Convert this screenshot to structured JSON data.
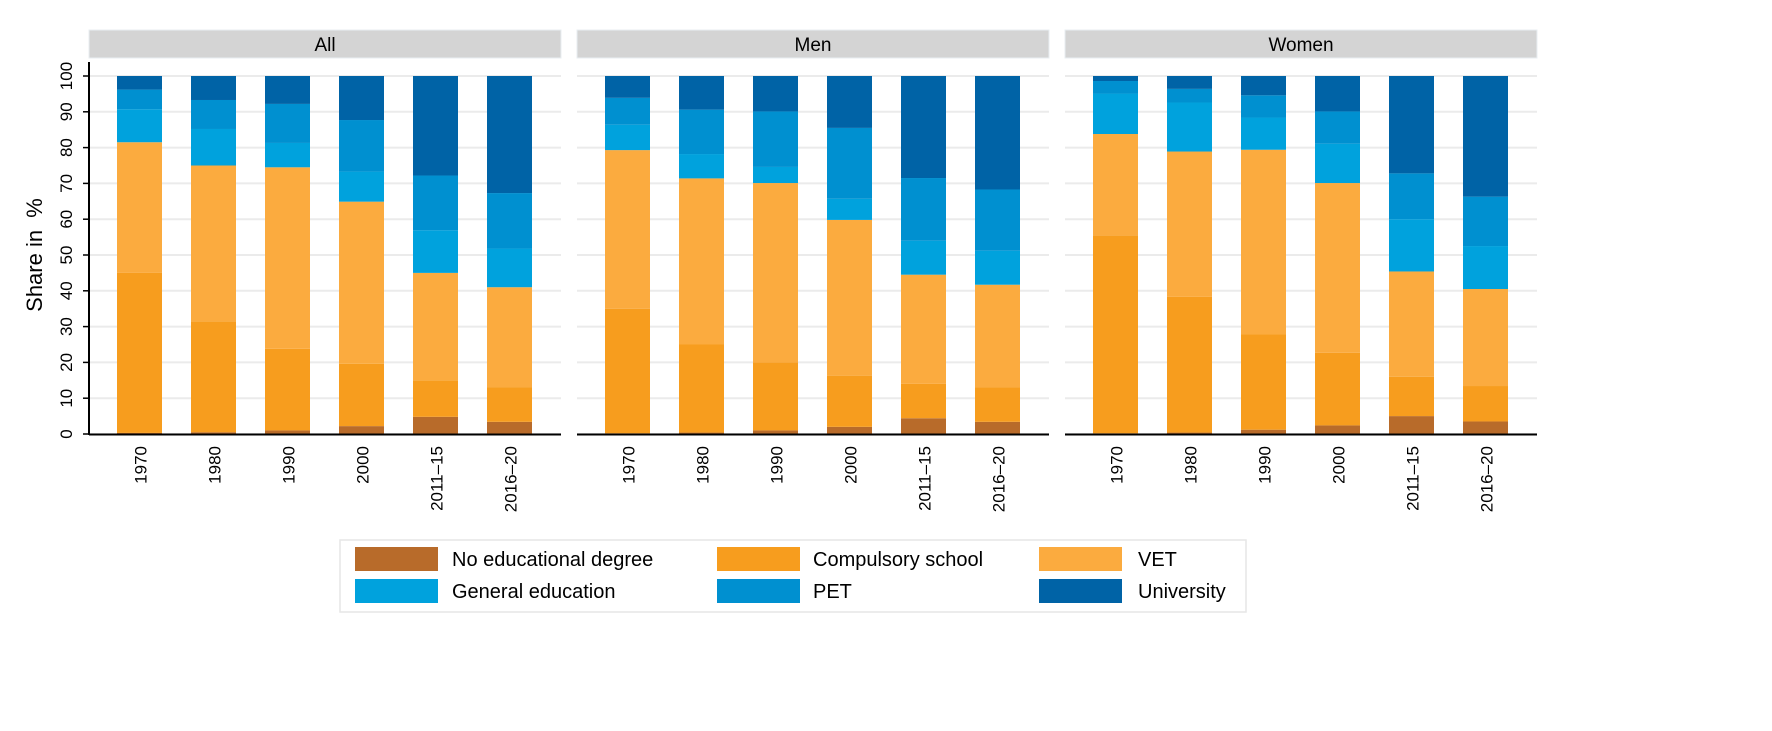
{
  "chart_data": {
    "type": "bar",
    "stacked": true,
    "ylabel": "Share in  %",
    "ylim": [
      0,
      100
    ],
    "yticks": [
      0,
      10,
      20,
      30,
      40,
      50,
      60,
      70,
      80,
      90,
      100
    ],
    "grid": true,
    "legend_position": "bottom",
    "categories": [
      "1970",
      "1980",
      "1990",
      "2000",
      "2011–15",
      "2016–20"
    ],
    "series_names": [
      "No educational degree",
      "Compulsory school",
      "VET",
      "General education",
      "PET",
      "University"
    ],
    "colors": [
      "#b86b2a",
      "#f79d1e",
      "#fbab3f",
      "#00a2dd",
      "#0090d0",
      "#0063a6"
    ],
    "panels": [
      {
        "title": "All",
        "series": [
          {
            "name": "No educational degree",
            "values": [
              0.3,
              0.5,
              1.0,
              2.2,
              4.8,
              3.4
            ]
          },
          {
            "name": "Compulsory school",
            "values": [
              44.7,
              31.0,
              22.8,
              17.4,
              10.2,
              9.7
            ]
          },
          {
            "name": "VET",
            "values": [
              36.5,
              43.5,
              50.7,
              45.3,
              30.0,
              27.9
            ]
          },
          {
            "name": "General education",
            "values": [
              9.2,
              10.2,
              6.8,
              8.4,
              11.9,
              10.8
            ]
          },
          {
            "name": "PET",
            "values": [
              5.5,
              8.1,
              10.9,
              14.4,
              15.3,
              15.5
            ]
          },
          {
            "name": "University",
            "values": [
              3.8,
              6.7,
              7.8,
              12.3,
              27.8,
              32.7
            ]
          }
        ]
      },
      {
        "title": "Men",
        "series": [
          {
            "name": "No educational degree",
            "values": [
              0.2,
              0.4,
              1.0,
              2.0,
              4.4,
              3.4
            ]
          },
          {
            "name": "Compulsory school",
            "values": [
              34.8,
              24.6,
              19.0,
              14.3,
              9.6,
              9.6
            ]
          },
          {
            "name": "VET",
            "values": [
              44.3,
              46.4,
              50.1,
              43.5,
              30.5,
              28.7
            ]
          },
          {
            "name": "General education",
            "values": [
              7.1,
              6.8,
              4.5,
              5.9,
              9.5,
              9.5
            ]
          },
          {
            "name": "PET",
            "values": [
              7.5,
              12.4,
              15.5,
              19.8,
              17.5,
              17.1
            ]
          },
          {
            "name": "University",
            "values": [
              6.1,
              9.4,
              9.9,
              14.5,
              28.5,
              31.7
            ]
          }
        ]
      },
      {
        "title": "Women",
        "series": [
          {
            "name": "No educational degree",
            "values": [
              0.2,
              0.4,
              1.2,
              2.4,
              5.0,
              3.5
            ]
          },
          {
            "name": "Compulsory school",
            "values": [
              55.3,
              37.9,
              26.6,
              20.3,
              11.0,
              9.9
            ]
          },
          {
            "name": "VET",
            "values": [
              28.3,
              40.6,
              51.6,
              47.4,
              29.4,
              27.1
            ]
          },
          {
            "name": "General education",
            "values": [
              11.3,
              13.7,
              9.0,
              11.0,
              14.6,
              12.0
            ]
          },
          {
            "name": "PET",
            "values": [
              3.5,
              3.8,
              6.2,
              9.0,
              12.8,
              13.8
            ]
          },
          {
            "name": "University",
            "values": [
              1.4,
              3.6,
              5.4,
              9.9,
              27.2,
              33.7
            ]
          }
        ]
      }
    ]
  }
}
